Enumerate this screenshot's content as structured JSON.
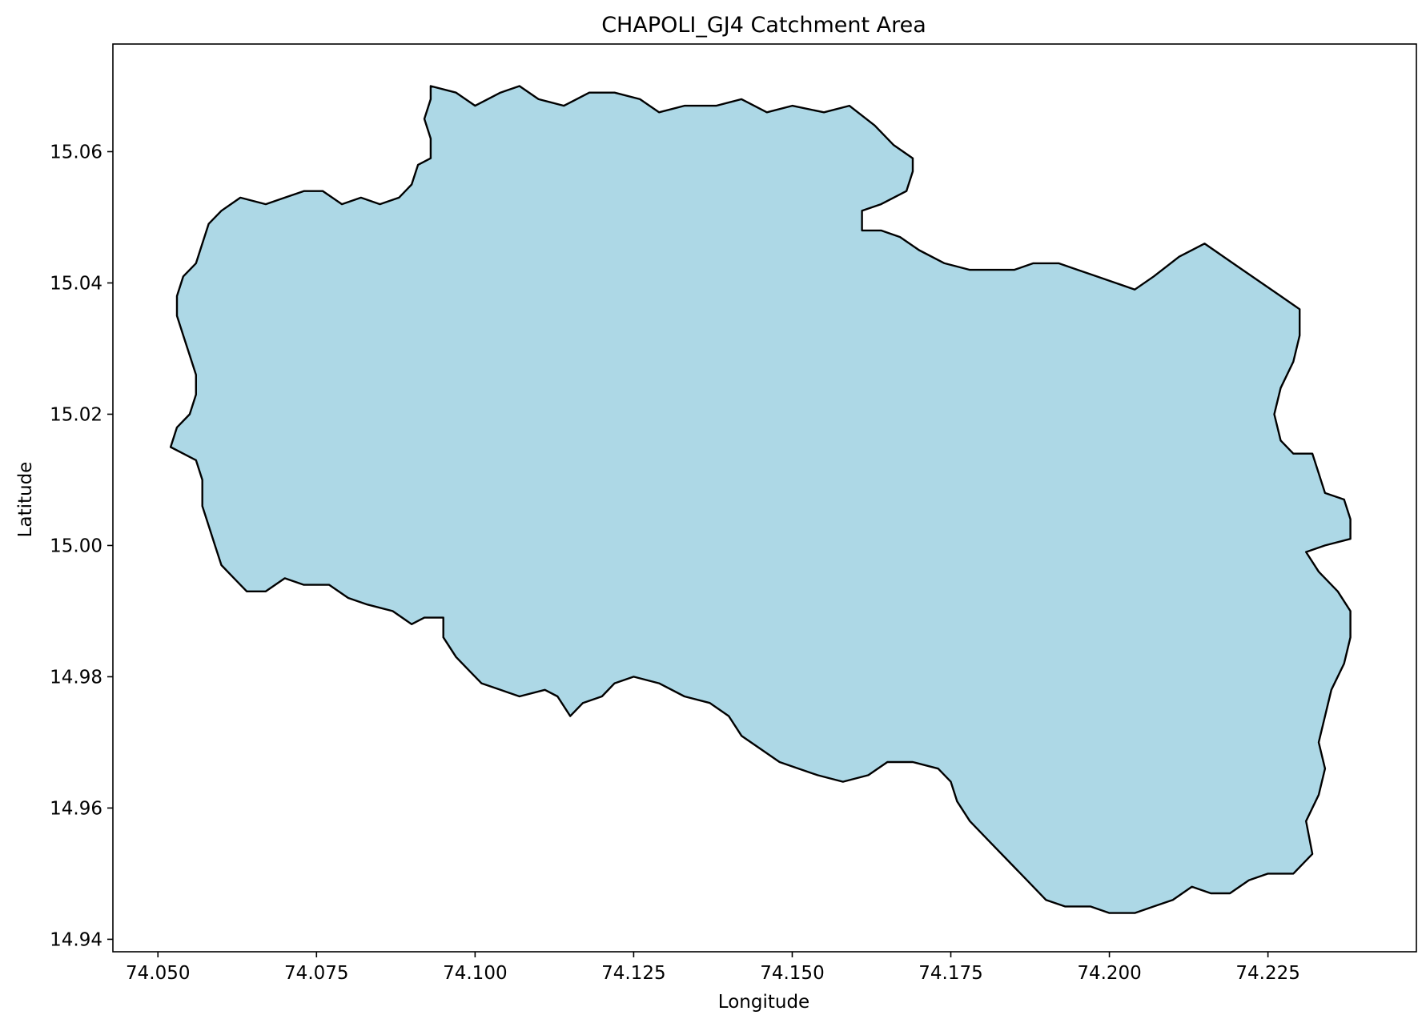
{
  "chart_data": {
    "type": "map",
    "title": "CHAPOLI_GJ4 Catchment Area",
    "xlabel": "Longitude",
    "ylabel": "Latitude",
    "xlim": [
      74.0429,
      74.2484
    ],
    "ylim": [
      14.9381,
      15.0764
    ],
    "xticks": [
      74.05,
      74.075,
      74.1,
      74.125,
      74.15,
      74.175,
      74.2,
      74.225
    ],
    "xtick_labels": [
      "74.050",
      "74.075",
      "74.100",
      "74.125",
      "74.150",
      "74.175",
      "74.200",
      "74.225"
    ],
    "yticks": [
      14.94,
      14.96,
      14.98,
      15.0,
      15.02,
      15.04,
      15.06
    ],
    "ytick_labels": [
      "14.94",
      "14.96",
      "14.98",
      "15.00",
      "15.02",
      "15.04",
      "15.06"
    ],
    "polygon_fill": "#add8e6",
    "polygon_edge": "#000000",
    "polygon": [
      [
        74.093,
        15.07
      ],
      [
        74.097,
        15.069
      ],
      [
        74.1,
        15.067
      ],
      [
        74.104,
        15.069
      ],
      [
        74.107,
        15.07
      ],
      [
        74.11,
        15.068
      ],
      [
        74.114,
        15.067
      ],
      [
        74.118,
        15.069
      ],
      [
        74.122,
        15.069
      ],
      [
        74.126,
        15.068
      ],
      [
        74.129,
        15.066
      ],
      [
        74.133,
        15.067
      ],
      [
        74.138,
        15.067
      ],
      [
        74.142,
        15.068
      ],
      [
        74.146,
        15.066
      ],
      [
        74.15,
        15.067
      ],
      [
        74.155,
        15.066
      ],
      [
        74.159,
        15.067
      ],
      [
        74.163,
        15.064
      ],
      [
        74.166,
        15.061
      ],
      [
        74.169,
        15.059
      ],
      [
        74.169,
        15.057
      ],
      [
        74.168,
        15.054
      ],
      [
        74.164,
        15.052
      ],
      [
        74.161,
        15.051
      ],
      [
        74.161,
        15.048
      ],
      [
        74.164,
        15.048
      ],
      [
        74.167,
        15.047
      ],
      [
        74.17,
        15.045
      ],
      [
        74.174,
        15.043
      ],
      [
        74.178,
        15.042
      ],
      [
        74.181,
        15.042
      ],
      [
        74.185,
        15.042
      ],
      [
        74.188,
        15.043
      ],
      [
        74.192,
        15.043
      ],
      [
        74.195,
        15.042
      ],
      [
        74.198,
        15.041
      ],
      [
        74.201,
        15.04
      ],
      [
        74.204,
        15.039
      ],
      [
        74.207,
        15.041
      ],
      [
        74.211,
        15.044
      ],
      [
        74.215,
        15.046
      ],
      [
        74.218,
        15.044
      ],
      [
        74.221,
        15.042
      ],
      [
        74.224,
        15.04
      ],
      [
        74.227,
        15.038
      ],
      [
        74.23,
        15.036
      ],
      [
        74.23,
        15.032
      ],
      [
        74.229,
        15.028
      ],
      [
        74.227,
        15.024
      ],
      [
        74.226,
        15.02
      ],
      [
        74.227,
        15.016
      ],
      [
        74.229,
        15.014
      ],
      [
        74.232,
        15.014
      ],
      [
        74.233,
        15.011
      ],
      [
        74.234,
        15.008
      ],
      [
        74.237,
        15.007
      ],
      [
        74.238,
        15.004
      ],
      [
        74.238,
        15.001
      ],
      [
        74.234,
        15.0
      ],
      [
        74.231,
        14.999
      ],
      [
        74.233,
        14.996
      ],
      [
        74.236,
        14.993
      ],
      [
        74.238,
        14.99
      ],
      [
        74.238,
        14.986
      ],
      [
        74.237,
        14.982
      ],
      [
        74.235,
        14.978
      ],
      [
        74.234,
        14.974
      ],
      [
        74.233,
        14.97
      ],
      [
        74.234,
        14.966
      ],
      [
        74.233,
        14.962
      ],
      [
        74.231,
        14.958
      ],
      [
        74.232,
        14.953
      ],
      [
        74.229,
        14.95
      ],
      [
        74.225,
        14.95
      ],
      [
        74.222,
        14.949
      ],
      [
        74.219,
        14.947
      ],
      [
        74.216,
        14.947
      ],
      [
        74.213,
        14.948
      ],
      [
        74.21,
        14.946
      ],
      [
        74.207,
        14.945
      ],
      [
        74.204,
        14.944
      ],
      [
        74.2,
        14.944
      ],
      [
        74.197,
        14.945
      ],
      [
        74.193,
        14.945
      ],
      [
        74.19,
        14.946
      ],
      [
        74.187,
        14.949
      ],
      [
        74.184,
        14.952
      ],
      [
        74.181,
        14.955
      ],
      [
        74.178,
        14.958
      ],
      [
        74.176,
        14.961
      ],
      [
        74.175,
        14.964
      ],
      [
        74.173,
        14.966
      ],
      [
        74.169,
        14.967
      ],
      [
        74.165,
        14.967
      ],
      [
        74.162,
        14.965
      ],
      [
        74.158,
        14.964
      ],
      [
        74.154,
        14.965
      ],
      [
        74.151,
        14.966
      ],
      [
        74.148,
        14.967
      ],
      [
        74.145,
        14.969
      ],
      [
        74.142,
        14.971
      ],
      [
        74.14,
        14.974
      ],
      [
        74.137,
        14.976
      ],
      [
        74.133,
        14.977
      ],
      [
        74.129,
        14.979
      ],
      [
        74.125,
        14.98
      ],
      [
        74.122,
        14.979
      ],
      [
        74.12,
        14.977
      ],
      [
        74.117,
        14.976
      ],
      [
        74.115,
        14.974
      ],
      [
        74.113,
        14.977
      ],
      [
        74.111,
        14.978
      ],
      [
        74.107,
        14.977
      ],
      [
        74.104,
        14.978
      ],
      [
        74.101,
        14.979
      ],
      [
        74.099,
        14.981
      ],
      [
        74.097,
        14.983
      ],
      [
        74.095,
        14.986
      ],
      [
        74.095,
        14.989
      ],
      [
        74.092,
        14.989
      ],
      [
        74.09,
        14.988
      ],
      [
        74.087,
        14.99
      ],
      [
        74.083,
        14.991
      ],
      [
        74.08,
        14.992
      ],
      [
        74.077,
        14.994
      ],
      [
        74.073,
        14.994
      ],
      [
        74.07,
        14.995
      ],
      [
        74.067,
        14.993
      ],
      [
        74.064,
        14.993
      ],
      [
        74.062,
        14.995
      ],
      [
        74.06,
        14.997
      ],
      [
        74.059,
        15.0
      ],
      [
        74.058,
        15.003
      ],
      [
        74.057,
        15.006
      ],
      [
        74.057,
        15.01
      ],
      [
        74.056,
        15.013
      ],
      [
        74.054,
        15.014
      ],
      [
        74.052,
        15.015
      ],
      [
        74.053,
        15.018
      ],
      [
        74.055,
        15.02
      ],
      [
        74.056,
        15.023
      ],
      [
        74.056,
        15.026
      ],
      [
        74.055,
        15.029
      ],
      [
        74.054,
        15.032
      ],
      [
        74.053,
        15.035
      ],
      [
        74.053,
        15.038
      ],
      [
        74.054,
        15.041
      ],
      [
        74.056,
        15.043
      ],
      [
        74.057,
        15.046
      ],
      [
        74.058,
        15.049
      ],
      [
        74.06,
        15.051
      ],
      [
        74.063,
        15.053
      ],
      [
        74.067,
        15.052
      ],
      [
        74.07,
        15.053
      ],
      [
        74.073,
        15.054
      ],
      [
        74.076,
        15.054
      ],
      [
        74.079,
        15.052
      ],
      [
        74.082,
        15.053
      ],
      [
        74.085,
        15.052
      ],
      [
        74.088,
        15.053
      ],
      [
        74.09,
        15.055
      ],
      [
        74.091,
        15.058
      ],
      [
        74.093,
        15.059
      ],
      [
        74.093,
        15.062
      ],
      [
        74.092,
        15.065
      ],
      [
        74.093,
        15.068
      ],
      [
        74.093,
        15.07
      ]
    ]
  }
}
